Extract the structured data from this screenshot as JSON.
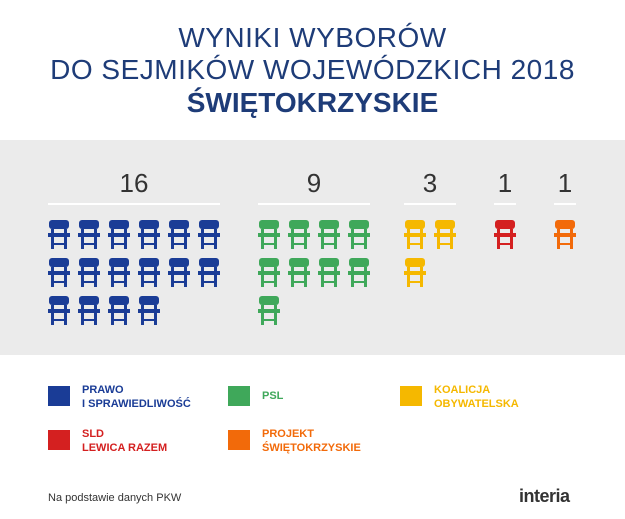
{
  "header": {
    "line1": "WYNIKI WYBORÓW",
    "line2": "DO SEJMIKÓW WOJEWÓDZKICH 2018",
    "line3": "ŚWIĘTOKRZYSKIE"
  },
  "chart_data": {
    "type": "bar",
    "categories": [
      "PRAWO I SPRAWIEDLIWOŚĆ",
      "PSL",
      "KOALICJA OBYWATELSKA",
      "SLD LEWICA RAZEM",
      "PROJEKT ŚWIĘTOKRZYSKIE"
    ],
    "values": [
      16,
      9,
      3,
      1,
      1
    ],
    "colors": [
      "#1a3c96",
      "#3fa85a",
      "#f5b800",
      "#d42020",
      "#f26a0a"
    ],
    "value_labels": [
      "16",
      "9",
      "3",
      "1",
      "1"
    ]
  },
  "legend": [
    {
      "line1": "PRAWO",
      "line2": "I SPRAWIEDLIWOŚĆ",
      "color": "#1a3c96"
    },
    {
      "line1": "PSL",
      "line2": "",
      "color": "#3fa85a"
    },
    {
      "line1": "KOALICJA",
      "line2": "OBYWATELSKA",
      "color": "#f5b800"
    },
    {
      "line1": "SLD",
      "line2": "LEWICA RAZEM",
      "color": "#d42020"
    },
    {
      "line1": "PROJEKT",
      "line2": "ŚWIĘTOKRZYSKIE",
      "color": "#f26a0a"
    }
  ],
  "footer": {
    "source": "Na podstawie danych PKW",
    "logo": "interia"
  }
}
